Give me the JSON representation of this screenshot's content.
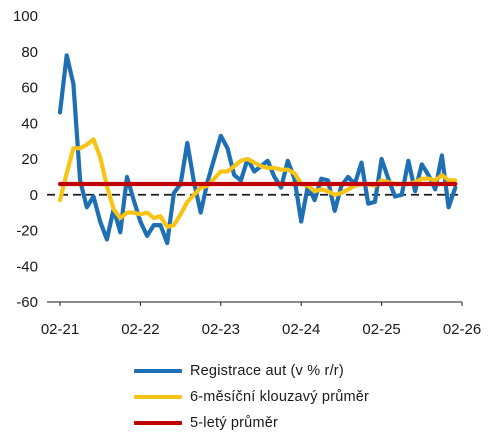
{
  "chart_data": {
    "type": "line",
    "title": "",
    "xlabel": "",
    "ylabel": "",
    "ylim": [
      -60,
      100
    ],
    "yticks": [
      "100",
      "80",
      "60",
      "40",
      "20",
      "0",
      "-20",
      "-40",
      "-60"
    ],
    "xtick_labels": [
      "02-21",
      "02-22",
      "02-23",
      "02-24",
      "02-25",
      "02-26"
    ],
    "x_start": "2021-02",
    "zero_line": "dashed",
    "series": [
      {
        "name": "Registrace aut (v % r/r)",
        "color": "#1f6fb4",
        "values": [
          46,
          78,
          62,
          8,
          -7,
          -1,
          -15,
          -25,
          -8,
          -21,
          10,
          -3,
          -15,
          -23,
          -17,
          -17,
          -27,
          1,
          6,
          29,
          7,
          -10,
          7,
          20,
          33,
          26,
          11,
          8,
          20,
          13,
          16,
          19,
          10,
          4,
          19,
          9,
          -15,
          5,
          -3,
          9,
          8,
          -9,
          5,
          10,
          6,
          18,
          -5,
          -4,
          20,
          9,
          -1,
          0,
          19,
          2,
          17,
          11,
          3,
          22,
          -7,
          4
        ]
      },
      {
        "name": "6-měsíční klouzavý průměr",
        "color": "#f7c415",
        "values": [
          -3,
          12,
          26,
          26,
          28,
          31,
          21,
          5,
          -8,
          -13,
          -10,
          -10,
          -11,
          -10,
          -13,
          -12,
          -18,
          -17,
          -11,
          -4,
          0,
          4,
          5,
          9,
          13,
          13,
          16,
          19,
          20,
          18,
          16,
          15,
          15,
          14,
          14,
          12,
          6,
          5,
          2,
          3,
          2,
          0,
          1,
          3,
          5,
          6,
          6,
          5,
          8,
          7,
          6,
          6,
          6,
          7,
          9,
          9,
          8,
          11,
          8,
          8
        ]
      },
      {
        "name": "5-letý průměr",
        "color": "#c00000",
        "values": [
          6,
          6,
          6,
          6,
          6,
          6,
          6,
          6,
          6,
          6,
          6,
          6,
          6,
          6,
          6,
          6,
          6,
          6,
          6,
          6,
          6,
          6,
          6,
          6,
          6,
          6,
          6,
          6,
          6,
          6,
          6,
          6,
          6,
          6,
          6,
          6,
          6,
          6,
          6,
          6,
          6,
          6,
          6,
          6,
          6,
          6,
          6,
          6,
          6,
          6,
          6,
          6,
          6,
          6,
          6,
          6,
          6,
          6,
          6,
          6
        ]
      }
    ],
    "legend": {
      "position": "bottom",
      "items": [
        {
          "label": "Registrace aut (v % r/r)",
          "color": "#1f6fb4"
        },
        {
          "label": "6-měsíční klouzavý průměr",
          "color": "#f7c415"
        },
        {
          "label": "5-letý průměr",
          "color": "#c00000"
        }
      ]
    }
  }
}
